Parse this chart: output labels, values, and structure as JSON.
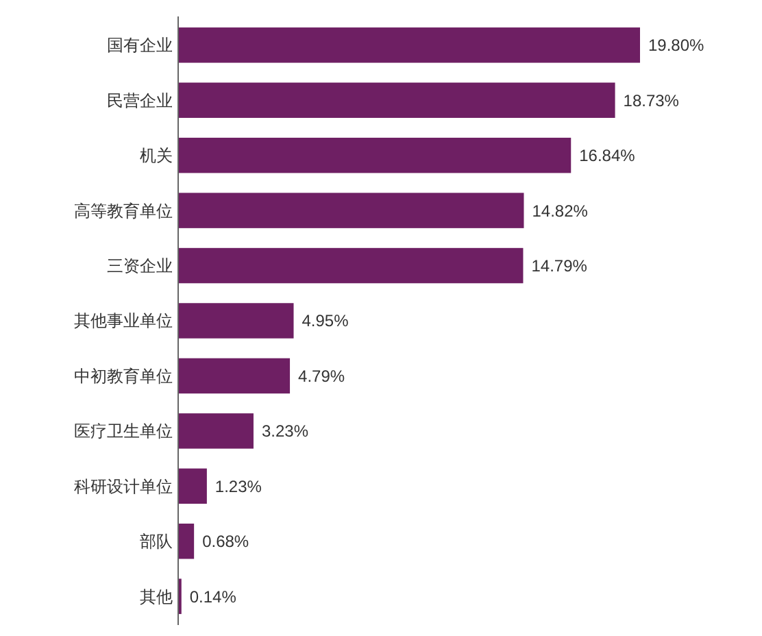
{
  "chart_data": {
    "type": "bar",
    "orientation": "horizontal",
    "categories": [
      "国有企业",
      "民营企业",
      "机关",
      "高等教育单位",
      "三资企业",
      "其他事业单位",
      "中初教育单位",
      "医疗卫生单位",
      "科研设计单位",
      "部队",
      "其他"
    ],
    "values": [
      19.8,
      18.73,
      16.84,
      14.82,
      14.79,
      4.95,
      4.79,
      3.23,
      1.23,
      0.68,
      0.14
    ],
    "value_labels": [
      "19.80%",
      "18.73%",
      "16.84%",
      "14.82%",
      "14.79%",
      "4.95%",
      "4.79%",
      "3.23%",
      "1.23%",
      "0.68%",
      "0.14%"
    ],
    "color": "#6e1f63"
  }
}
